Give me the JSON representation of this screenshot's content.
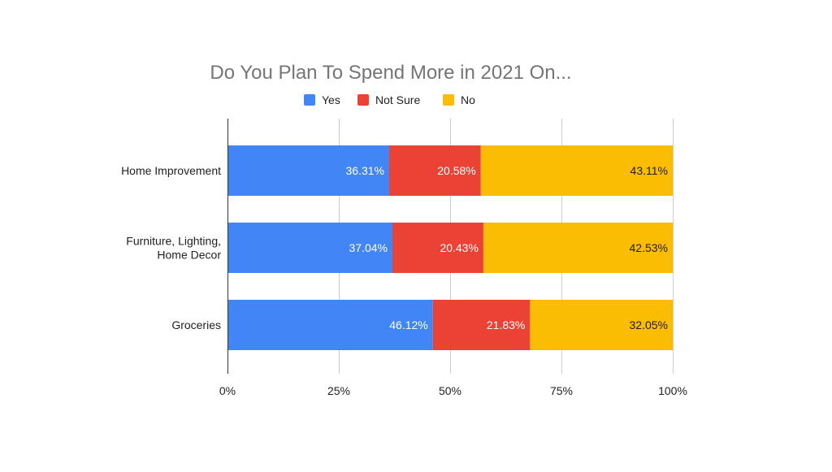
{
  "chart_data": {
    "type": "bar",
    "orientation": "horizontal",
    "stacked": "percent",
    "title": "Do You Plan To Spend More in 2021 On...",
    "categories": [
      [
        "Home Improvement"
      ],
      [
        "Furniture, Lighting,",
        "Home Decor"
      ],
      [
        "Groceries"
      ]
    ],
    "series": [
      {
        "name": "Yes",
        "color": "#4285F4",
        "label_color": "#ffffff",
        "values": [
          36.31,
          37.04,
          46.12
        ],
        "labels": [
          "36.31%",
          "37.04%",
          "46.12%"
        ]
      },
      {
        "name": "Not Sure",
        "color": "#EA4335",
        "label_color": "#ffffff",
        "values": [
          20.58,
          20.43,
          21.83
        ],
        "labels": [
          "20.58%",
          "20.43%",
          "21.83%"
        ]
      },
      {
        "name": "No",
        "color": "#FBBC04",
        "label_color": "#1f1f1f",
        "values": [
          43.11,
          42.53,
          32.05
        ],
        "labels": [
          "43.11%",
          "42.53%",
          "32.05%"
        ]
      }
    ],
    "xlim": [
      0,
      100
    ],
    "x_ticks": [
      {
        "value": 0,
        "label": "0%"
      },
      {
        "value": 25,
        "label": "25%"
      },
      {
        "value": 50,
        "label": "50%"
      },
      {
        "value": 75,
        "label": "75%"
      },
      {
        "value": 100,
        "label": "100%"
      }
    ],
    "legend": "top",
    "grid": true
  }
}
